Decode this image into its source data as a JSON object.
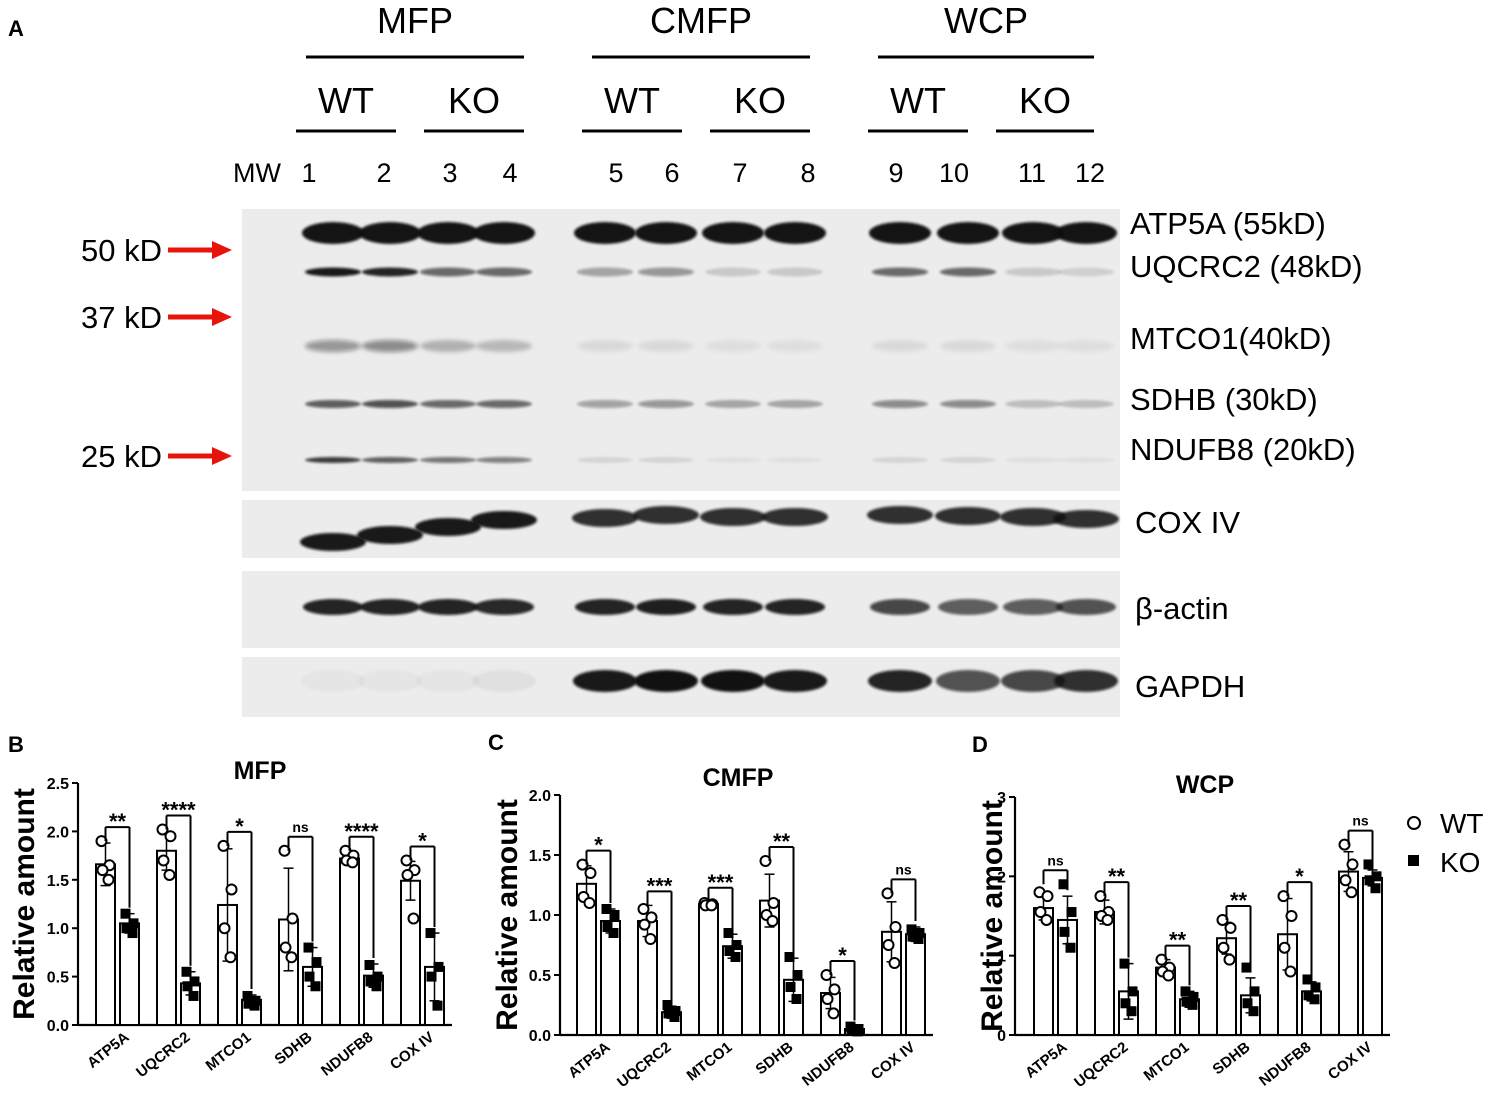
{
  "panel_a": {
    "letter": "A",
    "groups": [
      {
        "name": "MFP",
        "wt": "WT",
        "ko": "KO"
      },
      {
        "name": "CMFP",
        "wt": "WT",
        "ko": "KO"
      },
      {
        "name": "WCP",
        "wt": "WT",
        "ko": "KO"
      }
    ],
    "mw_label": "MW",
    "lanes": [
      "1",
      "2",
      "3",
      "4",
      "5",
      "6",
      "7",
      "8",
      "9",
      "10",
      "11",
      "12"
    ],
    "markers": [
      "50 kD",
      "37 kD",
      "25 kD"
    ],
    "bands": [
      "ATP5A (55kD)",
      "UQCRC2 (48kD)",
      "MTCO1(40kD)",
      "SDHB (30kD)",
      "NDUFB8 (20kD)"
    ],
    "loading_controls": [
      "COX IV",
      "β-actin",
      "GAPDH"
    ],
    "colors": {
      "arrow": "#e8140c"
    }
  },
  "legend": {
    "wt": "WT",
    "ko": "KO"
  },
  "chart_data": [
    {
      "panel": "B",
      "type": "bar",
      "title": "MFP",
      "ylabel": "Relative amount",
      "categories": [
        "ATP5A",
        "UQCRC2",
        "MTCO1",
        "SDHB",
        "NDUFB8",
        "COX IV"
      ],
      "ylim": [
        0,
        2.5
      ],
      "yticks": [
        "0.0",
        "0.5",
        "1.0",
        "1.5",
        "2.0",
        "2.5"
      ],
      "series": [
        {
          "name": "WT",
          "values": [
            1.66,
            1.8,
            1.24,
            1.09,
            1.72,
            1.49
          ],
          "err": [
            0.22,
            0.2,
            0.58,
            0.53,
            0.07,
            0.2
          ],
          "points": [
            [
              1.9,
              1.65,
              1.6,
              1.5
            ],
            [
              2.02,
              1.95,
              1.7,
              1.55
            ],
            [
              1.85,
              1.4,
              1.0,
              0.7
            ],
            [
              1.8,
              1.1,
              0.8,
              0.7
            ],
            [
              1.8,
              1.75,
              1.7,
              1.68
            ],
            [
              1.7,
              1.6,
              1.55,
              1.1
            ]
          ]
        },
        {
          "name": "KO",
          "values": [
            1.05,
            0.43,
            0.26,
            0.6,
            0.51,
            0.6
          ],
          "err": [
            0.1,
            0.12,
            0.05,
            0.2,
            0.12,
            0.35
          ],
          "points": [
            [
              1.15,
              1.05,
              1.0,
              0.95
            ],
            [
              0.55,
              0.45,
              0.4,
              0.3
            ],
            [
              0.3,
              0.25,
              0.22,
              0.2
            ],
            [
              0.8,
              0.65,
              0.5,
              0.4
            ],
            [
              0.62,
              0.5,
              0.45,
              0.4
            ],
            [
              0.95,
              0.6,
              0.5,
              0.2
            ]
          ]
        }
      ],
      "significance": [
        "**",
        "****",
        "*",
        "ns",
        "****",
        "*"
      ]
    },
    {
      "panel": "C",
      "type": "bar",
      "title": "CMFP",
      "ylabel": "Relative amount",
      "categories": [
        "ATP5A",
        "UQCRC2",
        "MTCO1",
        "SDHB",
        "NDUFB8",
        "COX IV"
      ],
      "ylim": [
        0,
        2.0
      ],
      "yticks": [
        "0.0",
        "0.5",
        "1.0",
        "1.5",
        "2.0"
      ],
      "series": [
        {
          "name": "WT",
          "values": [
            1.26,
            0.95,
            1.09,
            1.12,
            0.35,
            0.86
          ],
          "err": [
            0.15,
            0.13,
            0.02,
            0.22,
            0.13,
            0.25
          ],
          "points": [
            [
              1.42,
              1.35,
              1.15,
              1.1
            ],
            [
              1.05,
              0.98,
              0.92,
              0.8
            ],
            [
              1.1,
              1.09,
              1.08,
              1.08
            ],
            [
              1.45,
              1.1,
              1.0,
              0.95
            ],
            [
              0.5,
              0.38,
              0.3,
              0.18
            ],
            [
              1.18,
              0.9,
              0.75,
              0.6
            ]
          ]
        },
        {
          "name": "KO",
          "values": [
            0.95,
            0.19,
            0.74,
            0.46,
            0.05,
            0.84
          ],
          "err": [
            0.1,
            0.05,
            0.1,
            0.18,
            0.02,
            0.06
          ],
          "points": [
            [
              1.05,
              1.0,
              0.9,
              0.85
            ],
            [
              0.25,
              0.2,
              0.18,
              0.15
            ],
            [
              0.85,
              0.75,
              0.7,
              0.65
            ],
            [
              0.65,
              0.5,
              0.4,
              0.3
            ],
            [
              0.07,
              0.05,
              0.04,
              0.03
            ],
            [
              0.88,
              0.85,
              0.82,
              0.8
            ]
          ]
        }
      ],
      "significance": [
        "*",
        "***",
        "***",
        "**",
        "*",
        "ns"
      ]
    },
    {
      "panel": "D",
      "type": "bar",
      "title": "WCP",
      "ylabel": "Relative amount",
      "categories": [
        "ATP5A",
        "UQCRC2",
        "MTCO1",
        "SDHB",
        "NDUFB8",
        "COX IV"
      ],
      "ylim": [
        0,
        3
      ],
      "yticks": [
        "0",
        "1",
        "2",
        "3"
      ],
      "series": [
        {
          "name": "WT",
          "values": [
            1.6,
            1.55,
            0.85,
            1.22,
            1.27,
            2.06
          ],
          "err": [
            0.15,
            0.15,
            0.1,
            0.2,
            0.45,
            0.25
          ],
          "points": [
            [
              1.8,
              1.75,
              1.55,
              1.45
            ],
            [
              1.75,
              1.55,
              1.5,
              1.45
            ],
            [
              0.95,
              0.85,
              0.8,
              0.75
            ],
            [
              1.45,
              1.35,
              1.1,
              0.95
            ],
            [
              1.75,
              1.5,
              1.1,
              0.8
            ],
            [
              2.4,
              2.15,
              1.95,
              1.8
            ]
          ]
        },
        {
          "name": "KO",
          "values": [
            1.45,
            0.55,
            0.45,
            0.5,
            0.55,
            1.98
          ],
          "err": [
            0.3,
            0.35,
            0.1,
            0.22,
            0.12,
            0.1
          ],
          "points": [
            [
              1.9,
              1.55,
              1.3,
              1.1
            ],
            [
              0.9,
              0.55,
              0.4,
              0.3
            ],
            [
              0.55,
              0.48,
              0.42,
              0.38
            ],
            [
              0.85,
              0.55,
              0.4,
              0.3
            ],
            [
              0.7,
              0.6,
              0.5,
              0.45
            ],
            [
              2.15,
              2.0,
              1.95,
              1.85
            ]
          ]
        }
      ],
      "significance": [
        "ns",
        "**",
        "**",
        "**",
        "*",
        "ns"
      ]
    }
  ]
}
